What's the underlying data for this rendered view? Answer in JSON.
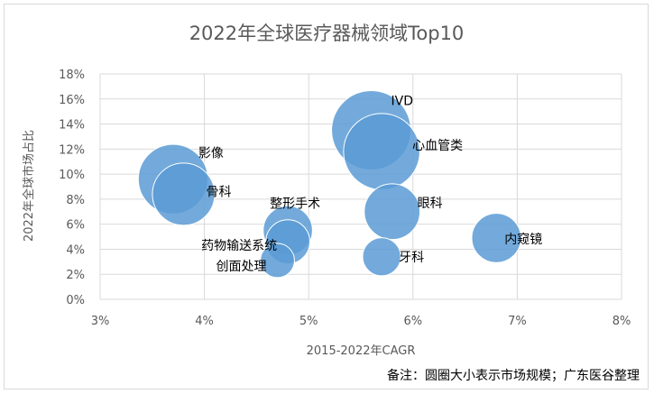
{
  "chart_data": {
    "type": "scatter",
    "title": "2022年全球医疗器械领域Top10",
    "xlabel": "2015-2022年CAGR",
    "ylabel": "2022年全球市场占比",
    "xlim": [
      3,
      8
    ],
    "ylim": [
      0,
      18
    ],
    "x_ticks": [
      "3%",
      "4%",
      "5%",
      "6%",
      "7%",
      "8%"
    ],
    "y_ticks": [
      "0%",
      "2%",
      "4%",
      "6%",
      "8%",
      "10%",
      "12%",
      "14%",
      "16%",
      "18%"
    ],
    "grid": true,
    "bubble_color": "#5B9BD5",
    "points": [
      {
        "label": "IVD",
        "x": 5.6,
        "y": 13.5,
        "size": 6.5
      },
      {
        "label": "心血管类",
        "x": 5.7,
        "y": 11.8,
        "size": 6.0
      },
      {
        "label": "影像",
        "x": 3.7,
        "y": 9.6,
        "size": 5.0
      },
      {
        "label": "骨科",
        "x": 3.8,
        "y": 8.4,
        "size": 4.0
      },
      {
        "label": "眼科",
        "x": 5.8,
        "y": 7.0,
        "size": 3.2
      },
      {
        "label": "整形手术",
        "x": 4.8,
        "y": 5.5,
        "size": 2.5
      },
      {
        "label": "内窥镜",
        "x": 6.8,
        "y": 4.9,
        "size": 2.5
      },
      {
        "label": "药物输送系统",
        "x": 4.8,
        "y": 4.6,
        "size": 2.0
      },
      {
        "label": "牙科",
        "x": 5.7,
        "y": 3.4,
        "size": 1.5
      },
      {
        "label": "创面处理",
        "x": 4.7,
        "y": 3.1,
        "size": 1.2
      }
    ]
  },
  "note": "备注：圆圈大小表示市场规模；广东医谷整理"
}
